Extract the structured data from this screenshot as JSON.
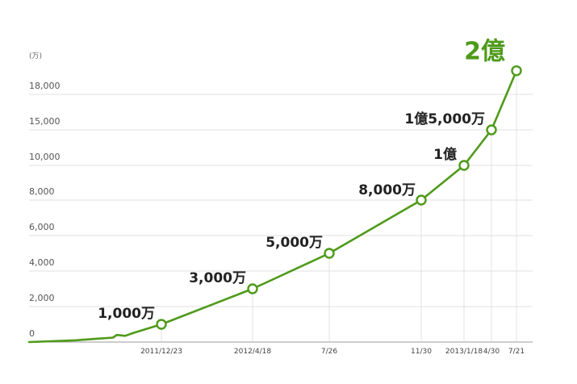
{
  "chart_data": {
    "type": "line",
    "unit_label": "(万)",
    "y_ticks": [
      "0",
      "2,000",
      "4,000",
      "6,000",
      "8,000",
      "10,000",
      "15,000",
      "18,000"
    ],
    "x_labels": [
      "2011/12/23",
      "2012/4/18",
      "7/26",
      "11/30",
      "2013/1/18",
      "4/30",
      "7/21"
    ],
    "series": [
      {
        "line_color": "#4e9a1a",
        "points": [
          {
            "date": "2011-07-01",
            "value": 0
          },
          {
            "date": "2011-09-01",
            "value": 100
          },
          {
            "date": "2011-10-20",
            "value": 250
          },
          {
            "date": "2011-10-25",
            "value": 400
          },
          {
            "date": "2011-11-05",
            "value": 350
          },
          {
            "date": "2011-11-15",
            "value": 500
          },
          {
            "date": "2011-12-23",
            "value": 1000,
            "label": "1,000万"
          },
          {
            "date": "2012-04-18",
            "value": 3000,
            "label": "3,000万"
          },
          {
            "date": "2012-07-26",
            "value": 5000,
            "label": "5,000万"
          },
          {
            "date": "2012-11-30",
            "value": 8000,
            "label": "8,000万"
          },
          {
            "date": "2013-01-18",
            "value": 10000,
            "label": "1億"
          },
          {
            "date": "2013-04-30",
            "value": 15000,
            "label": "1億5,000万"
          },
          {
            "date": "2013-07-21",
            "value": 20000,
            "label": "2億"
          }
        ]
      }
    ]
  }
}
